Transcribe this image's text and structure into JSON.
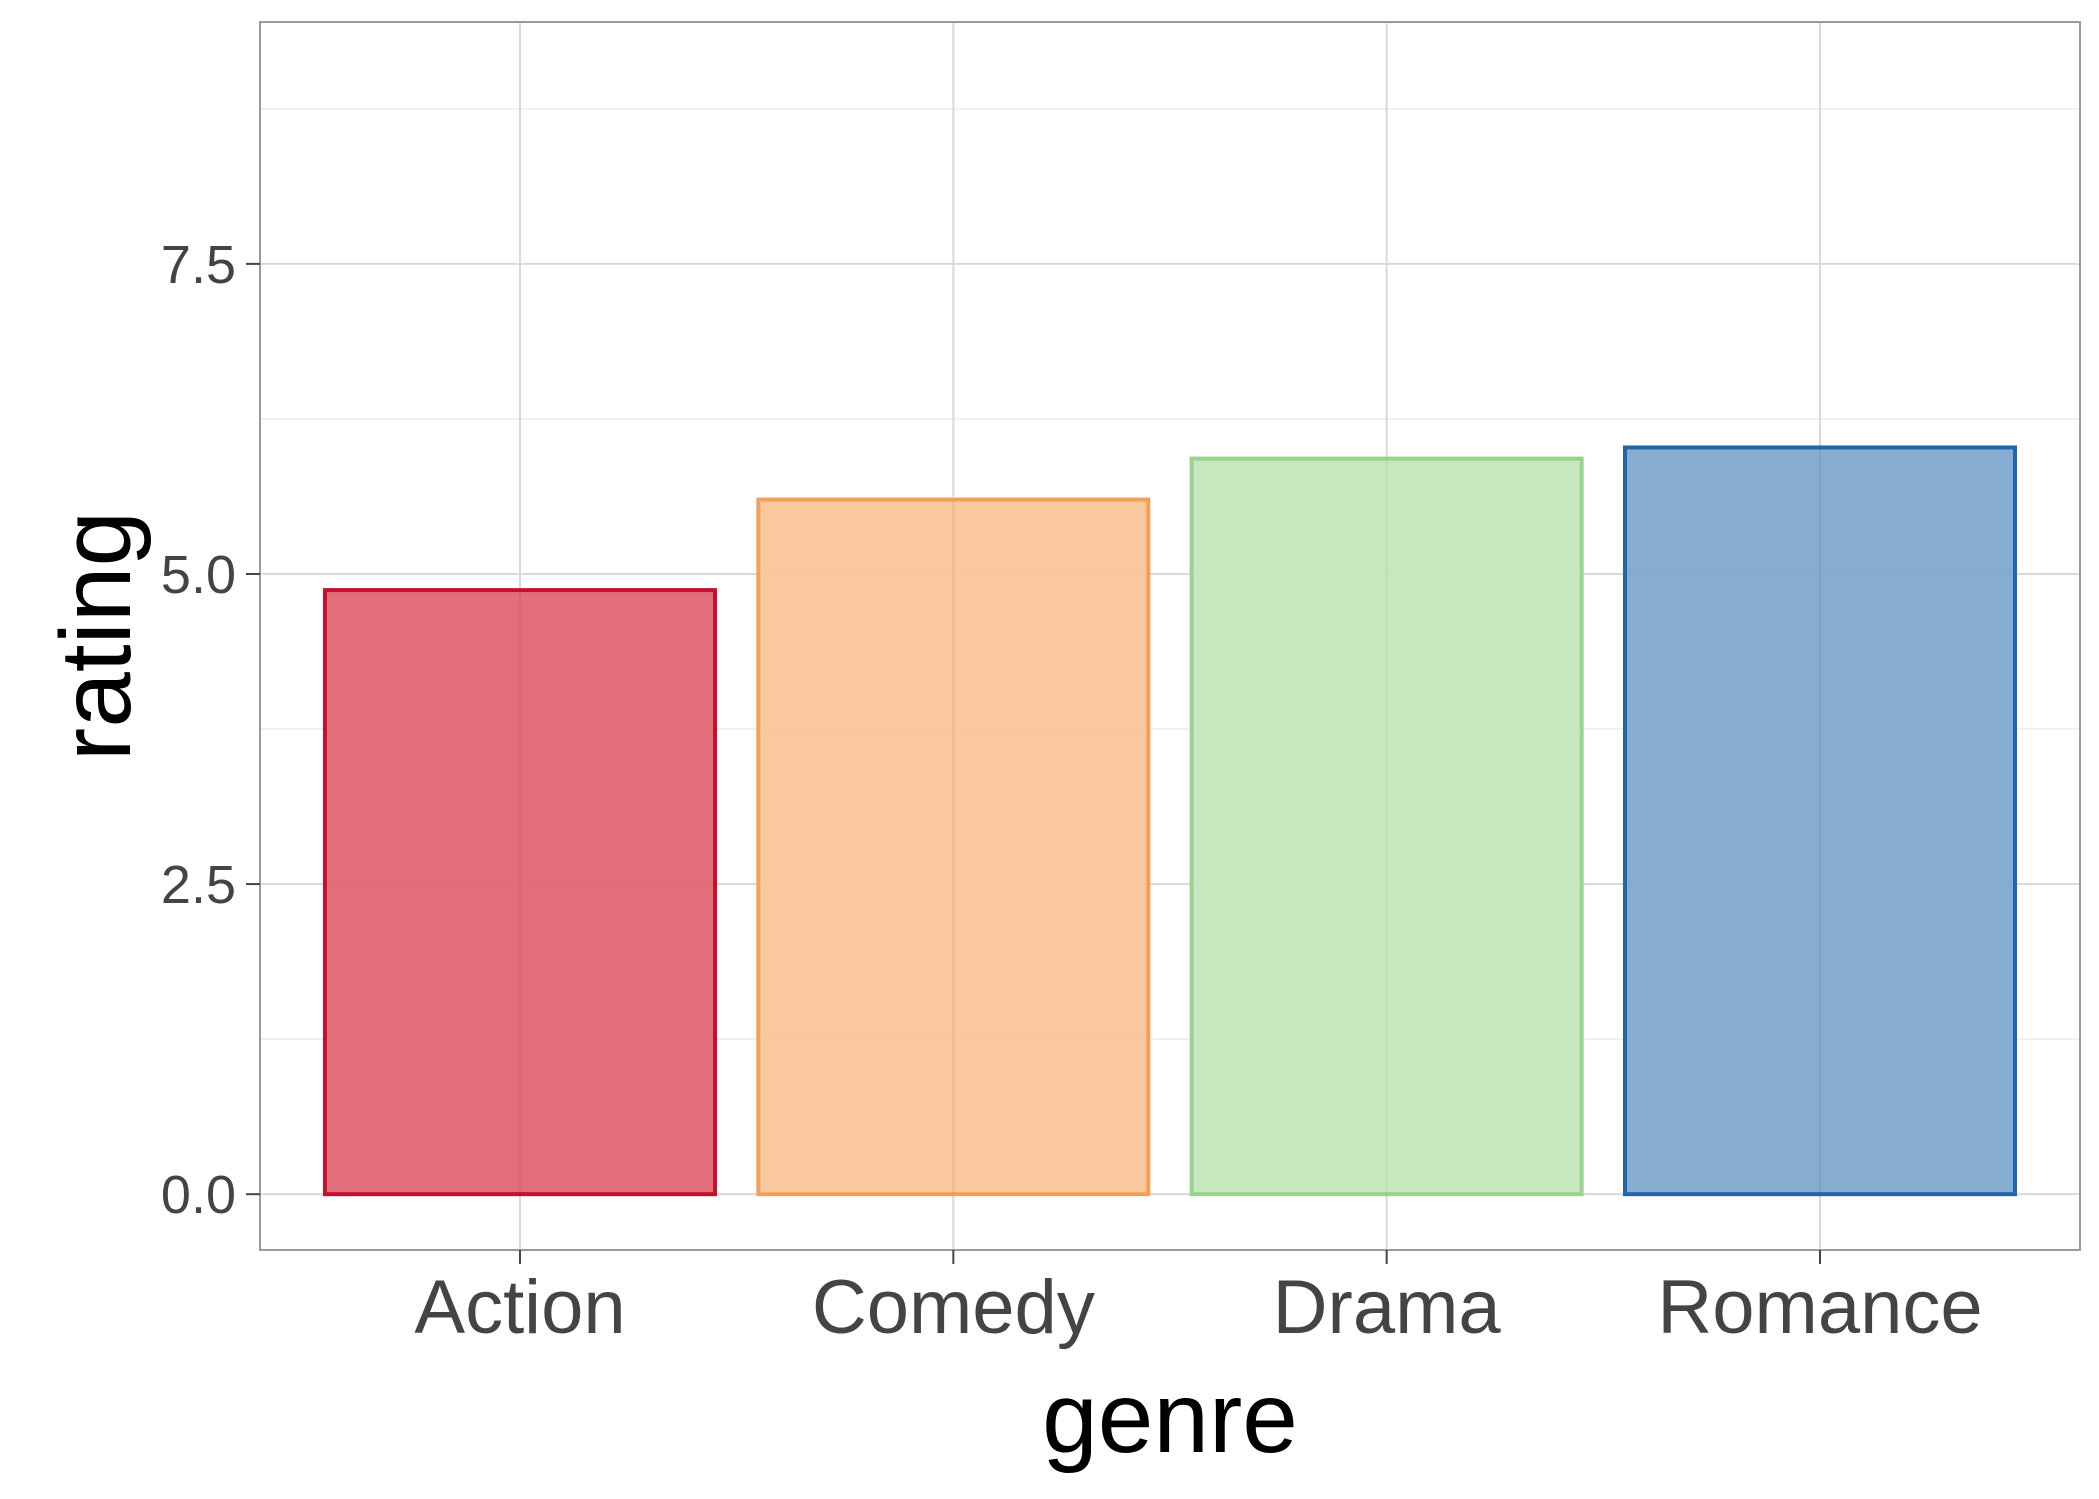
{
  "chart_data": {
    "type": "bar",
    "title": "",
    "xlabel": "genre",
    "ylabel": "rating",
    "categories": [
      "Action",
      "Comedy",
      "Drama",
      "Romance"
    ],
    "values": [
      4.87,
      5.6,
      5.93,
      6.02
    ],
    "ylim": [
      -0.45,
      9.45
    ],
    "yticks": [
      0.0,
      2.5,
      5.0,
      7.5
    ],
    "ytick_labels": [
      "0.0",
      "2.5",
      "5.0",
      "7.5"
    ],
    "grid": true,
    "legend": "none",
    "colors": {
      "fill": [
        "#e06673",
        "#fbc497",
        "#c5e8bd",
        "#7fa9cd"
      ],
      "stroke": [
        "#c8102e",
        "#f3a15a",
        "#98d48c",
        "#2166ac"
      ]
    }
  }
}
